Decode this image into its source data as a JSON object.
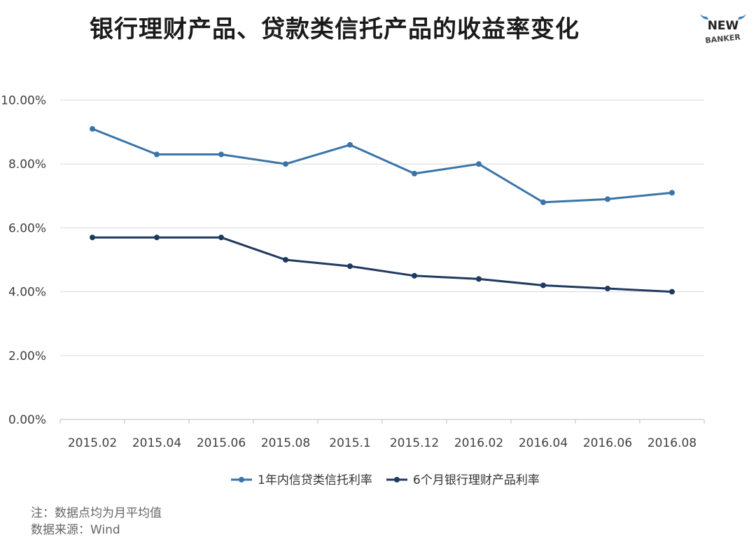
{
  "title": "银行理财产品、贷款类信托产品的收益率变化",
  "logo": {
    "line1": "NEW",
    "line2": "BANKER",
    "accent": "#3a7fc0"
  },
  "notes": {
    "note": "注：数据点均为月平均值",
    "source": "数据来源：Wind"
  },
  "chart_data": {
    "type": "line",
    "title": "银行理财产品、贷款类信托产品的收益率变化",
    "categories": [
      "2015.02",
      "2015.04",
      "2015.06",
      "2015.08",
      "2015.1",
      "2015.12",
      "2016.02",
      "2016.04",
      "2016.06",
      "2016.08"
    ],
    "y_ticks": [
      "0.00%",
      "2.00%",
      "4.00%",
      "6.00%",
      "8.00%",
      "10.00%"
    ],
    "ylim": [
      0,
      10
    ],
    "grid": true,
    "legend_position": "bottom",
    "series": [
      {
        "name": "1年内信贷类信托利率",
        "color": "#3a74a8",
        "values": [
          9.1,
          8.3,
          8.3,
          8.0,
          8.6,
          7.7,
          8.0,
          6.8,
          6.9,
          7.1
        ]
      },
      {
        "name": "6个月银行理财产品利率",
        "color": "#1f3a5f",
        "values": [
          5.7,
          5.7,
          5.7,
          5.0,
          4.8,
          4.5,
          4.4,
          4.2,
          4.1,
          4.0
        ]
      }
    ]
  }
}
